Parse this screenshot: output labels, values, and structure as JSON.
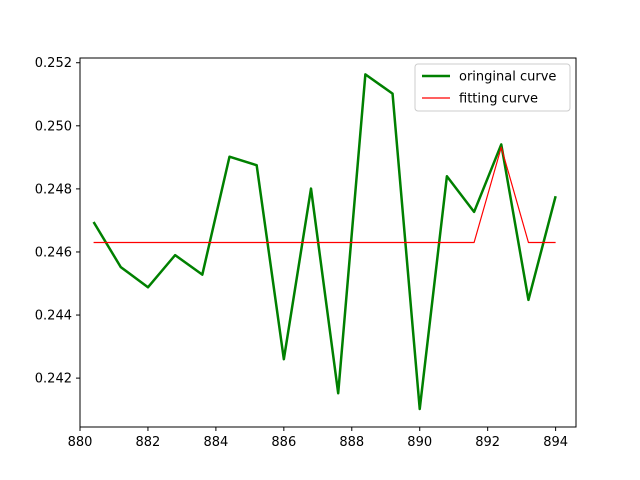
{
  "chart_data": {
    "type": "line",
    "title": "",
    "xlabel": "",
    "ylabel": "",
    "xlim": [
      880.0,
      894.6
    ],
    "ylim": [
      0.24045,
      0.25215
    ],
    "xticks": [
      880,
      882,
      884,
      886,
      888,
      890,
      892,
      894
    ],
    "yticks": [
      0.242,
      0.244,
      0.246,
      0.248,
      0.25,
      0.252
    ],
    "xtick_labels": [
      "880",
      "882",
      "884",
      "886",
      "888",
      "890",
      "892",
      "894"
    ],
    "ytick_labels": [
      "0.242",
      "0.244",
      "0.246",
      "0.248",
      "0.250",
      "0.252"
    ],
    "grid": false,
    "legend_position": "top-right",
    "series": [
      {
        "name": "oringinal curve",
        "color": "#008000",
        "x": [
          880.4,
          881.2,
          882.0,
          882.8,
          883.6,
          884.4,
          885.2,
          886.0,
          886.8,
          887.6,
          888.4,
          889.2,
          890.0,
          890.8,
          891.6,
          892.4,
          893.2,
          894.0
        ],
        "y": [
          0.24695,
          0.24552,
          0.24488,
          0.2459,
          0.24528,
          0.24902,
          0.24875,
          0.2426,
          0.24801,
          0.24152,
          0.25163,
          0.25102,
          0.24102,
          0.2484,
          0.24727,
          0.24941,
          0.24448,
          0.24777
        ]
      },
      {
        "name": "fitting curve",
        "color": "#ff0000",
        "x": [
          880.4,
          881.2,
          882.0,
          882.8,
          883.6,
          884.4,
          885.2,
          886.0,
          886.8,
          887.6,
          888.4,
          889.2,
          890.0,
          890.8,
          891.6,
          892.4,
          893.2,
          894.0
        ],
        "y": [
          0.2463,
          0.2463,
          0.2463,
          0.2463,
          0.2463,
          0.2463,
          0.2463,
          0.2463,
          0.2463,
          0.2463,
          0.2463,
          0.2463,
          0.2463,
          0.2463,
          0.2463,
          0.24932,
          0.2463,
          0.2463
        ]
      }
    ]
  }
}
